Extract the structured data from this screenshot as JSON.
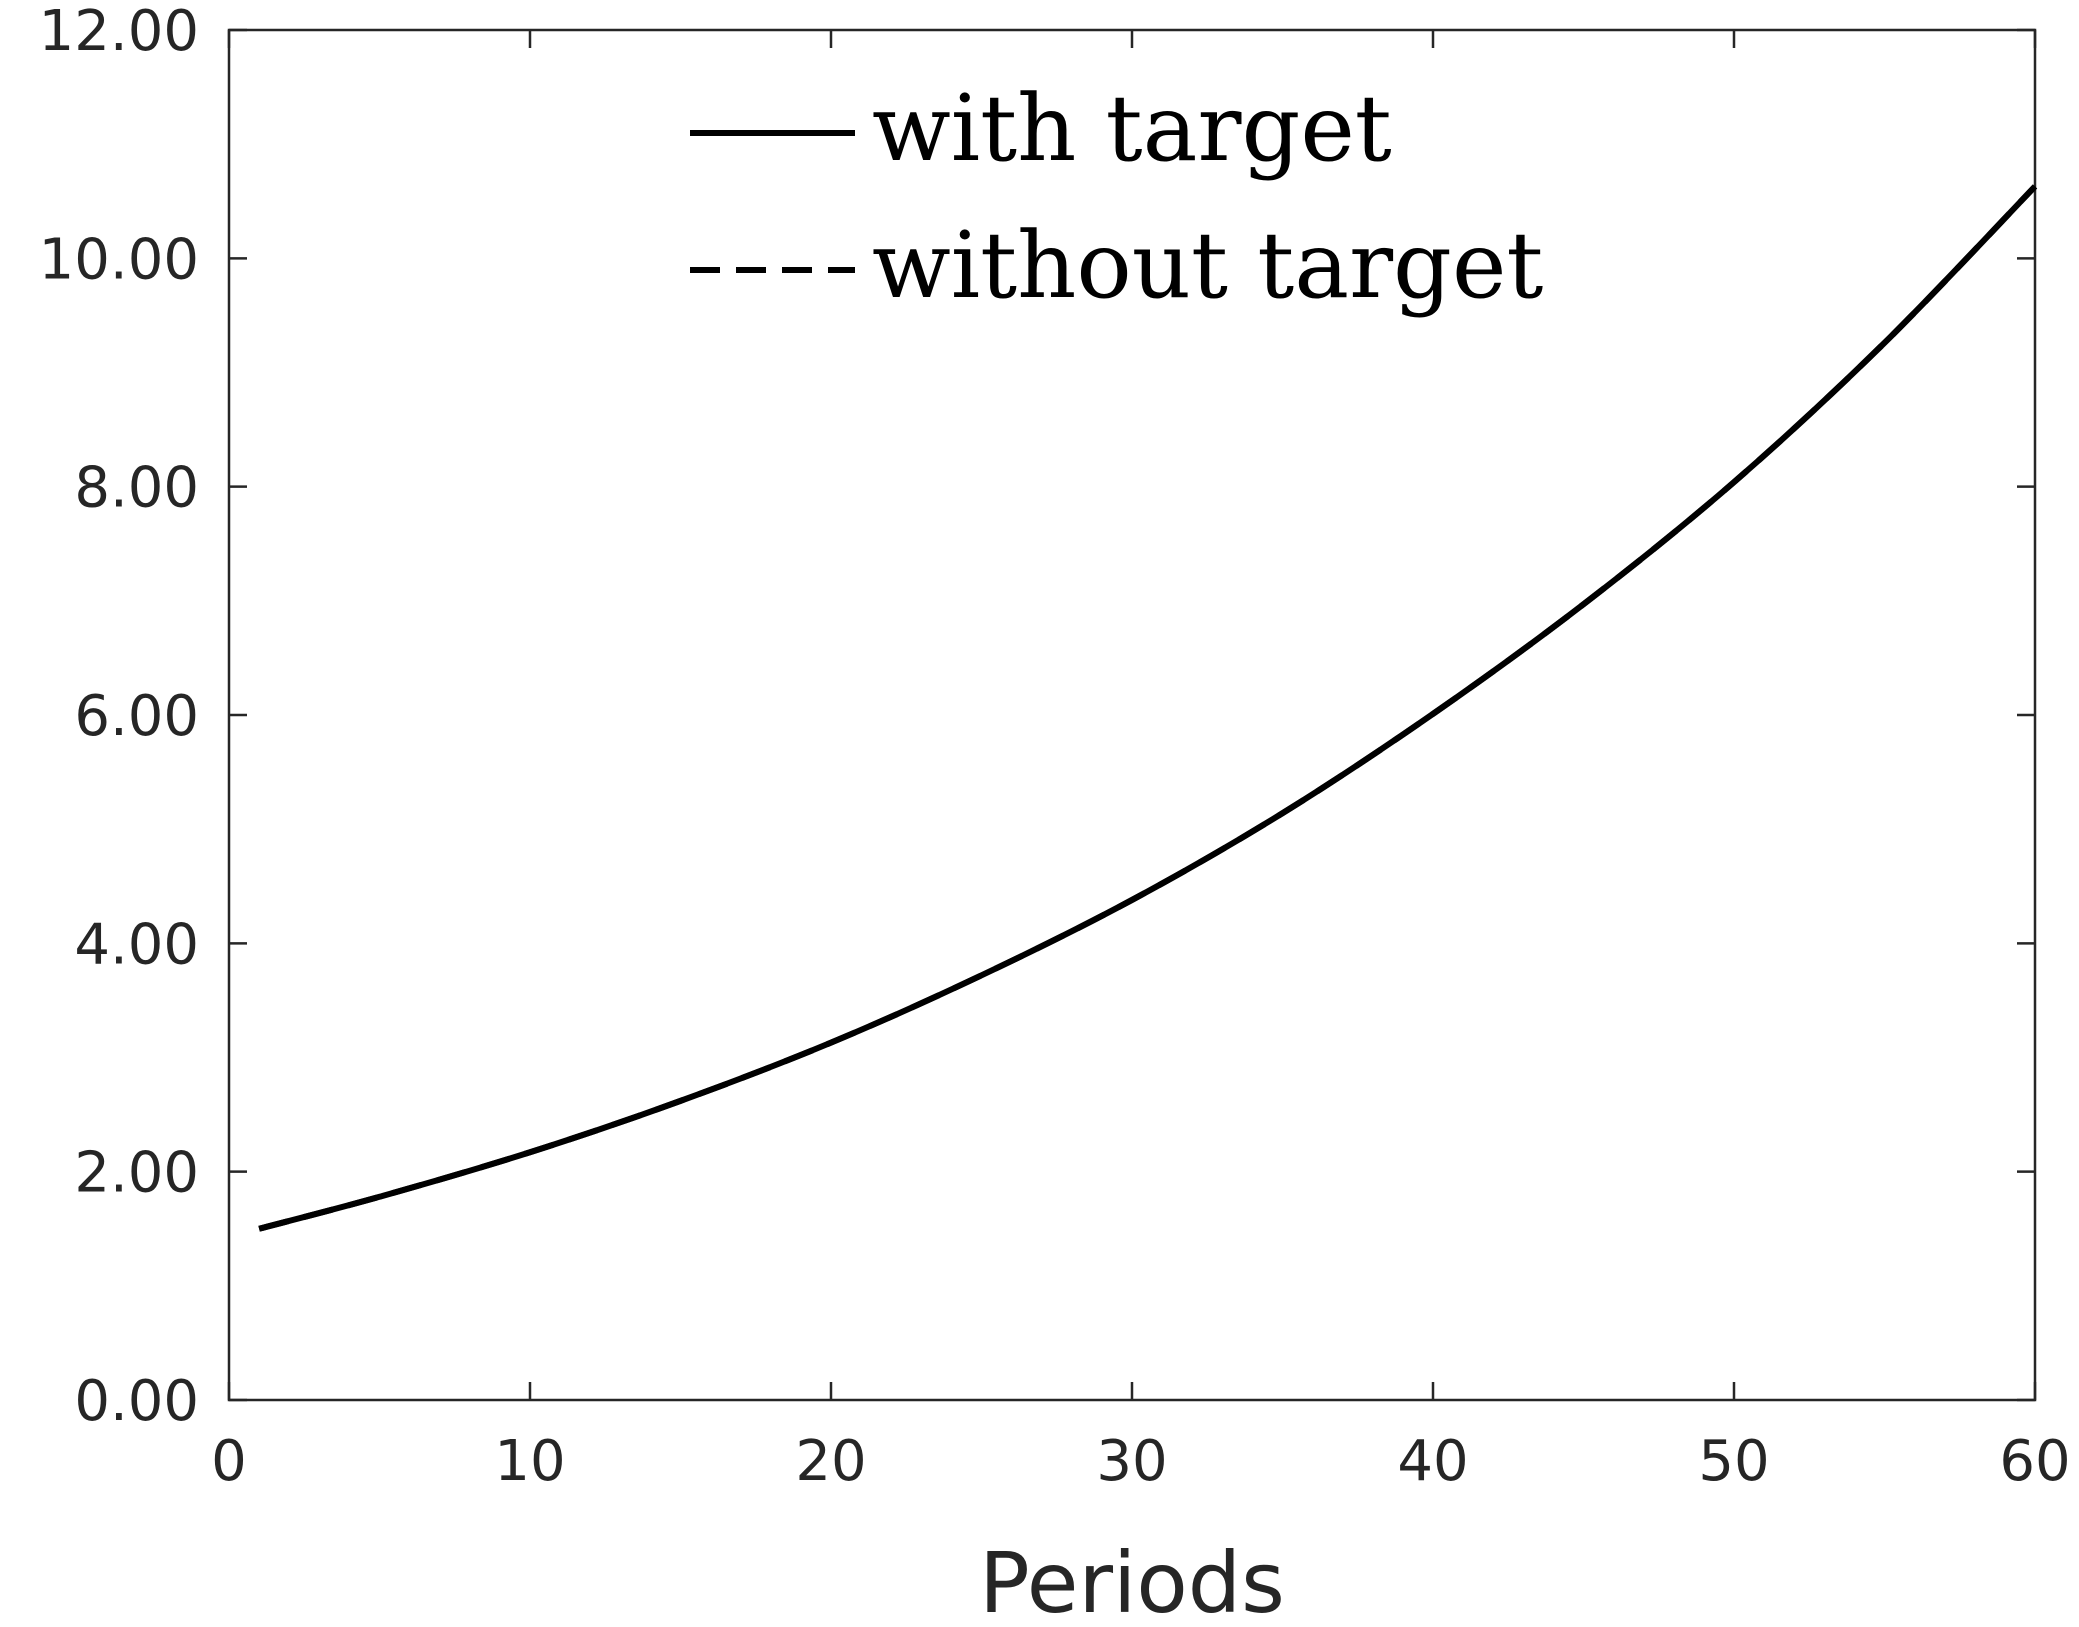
{
  "chart_data": {
    "type": "line",
    "xlabel": "Periods",
    "ylabel": "",
    "xlim": [
      0,
      60
    ],
    "ylim": [
      0,
      12
    ],
    "xticks": [
      0,
      10,
      20,
      30,
      40,
      50,
      60
    ],
    "xtick_labels": [
      "0",
      "10",
      "20",
      "30",
      "40",
      "50",
      "60"
    ],
    "yticks": [
      0,
      2,
      4,
      6,
      8,
      10,
      12
    ],
    "ytick_labels": [
      "0.00",
      "2.00",
      "4.00",
      "6.00",
      "8.00",
      "10.00",
      "12.00"
    ],
    "grid": false,
    "legend_position": "top-center",
    "series": [
      {
        "name": "with target",
        "style": "solid",
        "color": "#000000",
        "x": [
          1,
          5,
          10,
          15,
          20,
          25,
          30,
          35,
          40,
          45,
          50,
          55,
          60
        ],
        "y": [
          1.5,
          1.78,
          2.17,
          2.62,
          3.13,
          3.72,
          4.38,
          5.14,
          6.01,
          6.97,
          8.04,
          9.26,
          10.63
        ]
      },
      {
        "name": "without target",
        "style": "dashed",
        "color": "#000000",
        "x": [
          1,
          5,
          10,
          15,
          20,
          25,
          30,
          35,
          40,
          45,
          50,
          55,
          60
        ],
        "y": [
          1.5,
          1.78,
          2.17,
          2.62,
          3.13,
          3.72,
          4.38,
          5.14,
          6.01,
          6.97,
          8.04,
          9.26,
          10.63
        ]
      }
    ]
  }
}
